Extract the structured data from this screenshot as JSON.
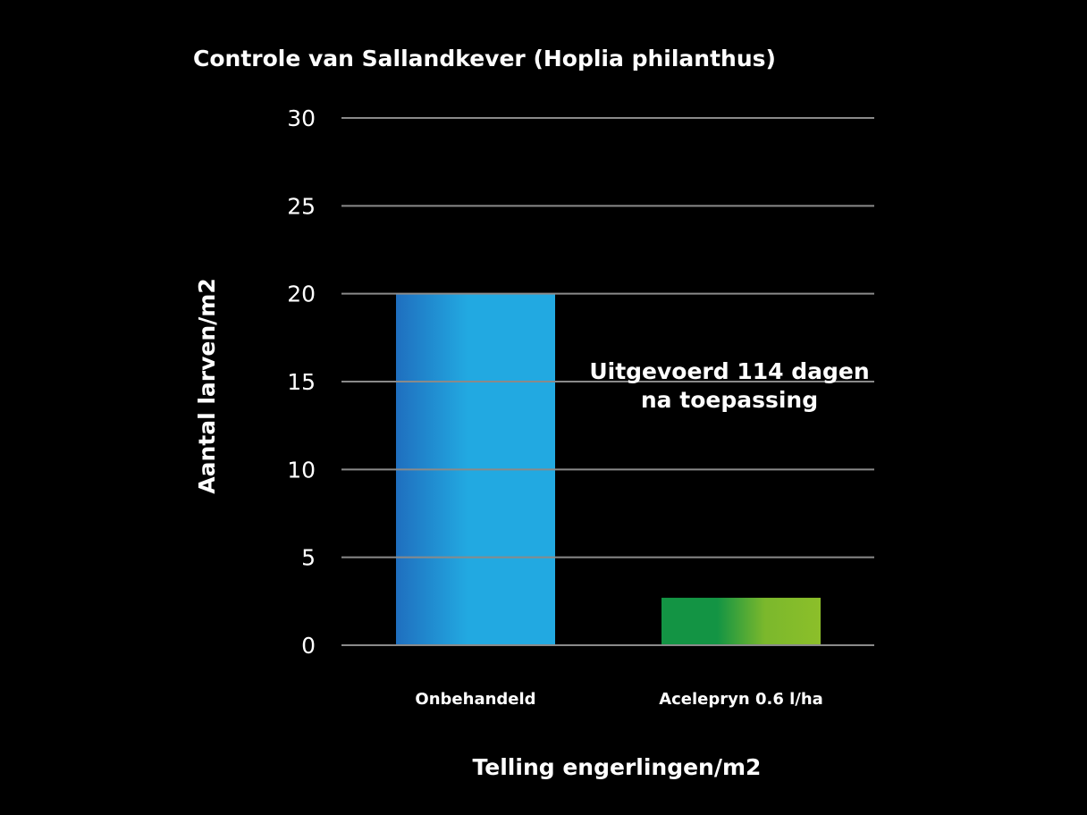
{
  "chart_data": {
    "type": "bar",
    "title": "Controle van Sallandkever (Hoplia philanthus)",
    "xlabel": "Telling engerlingen/m2",
    "ylabel": "Aantal larven/m2",
    "categories": [
      "Onbehandeld",
      "Acelepryn 0.6 l/ha"
    ],
    "values": [
      20,
      2.7
    ],
    "ylim": [
      0,
      30
    ],
    "yticks": [
      "0",
      "5",
      "10",
      "15",
      "20",
      "25",
      "30"
    ],
    "grid": true,
    "annotation": [
      "Uitgevoerd 114 dagen",
      "na toepassing"
    ],
    "colors": {
      "background": "#000000",
      "text": "#ffffff",
      "grid": "#8a8a8a",
      "bar_blue_dark": "#1f6fbf",
      "bar_blue": "#22a9e1",
      "bar_green_dark": "#139444",
      "bar_green": "#8cbf2a"
    }
  }
}
